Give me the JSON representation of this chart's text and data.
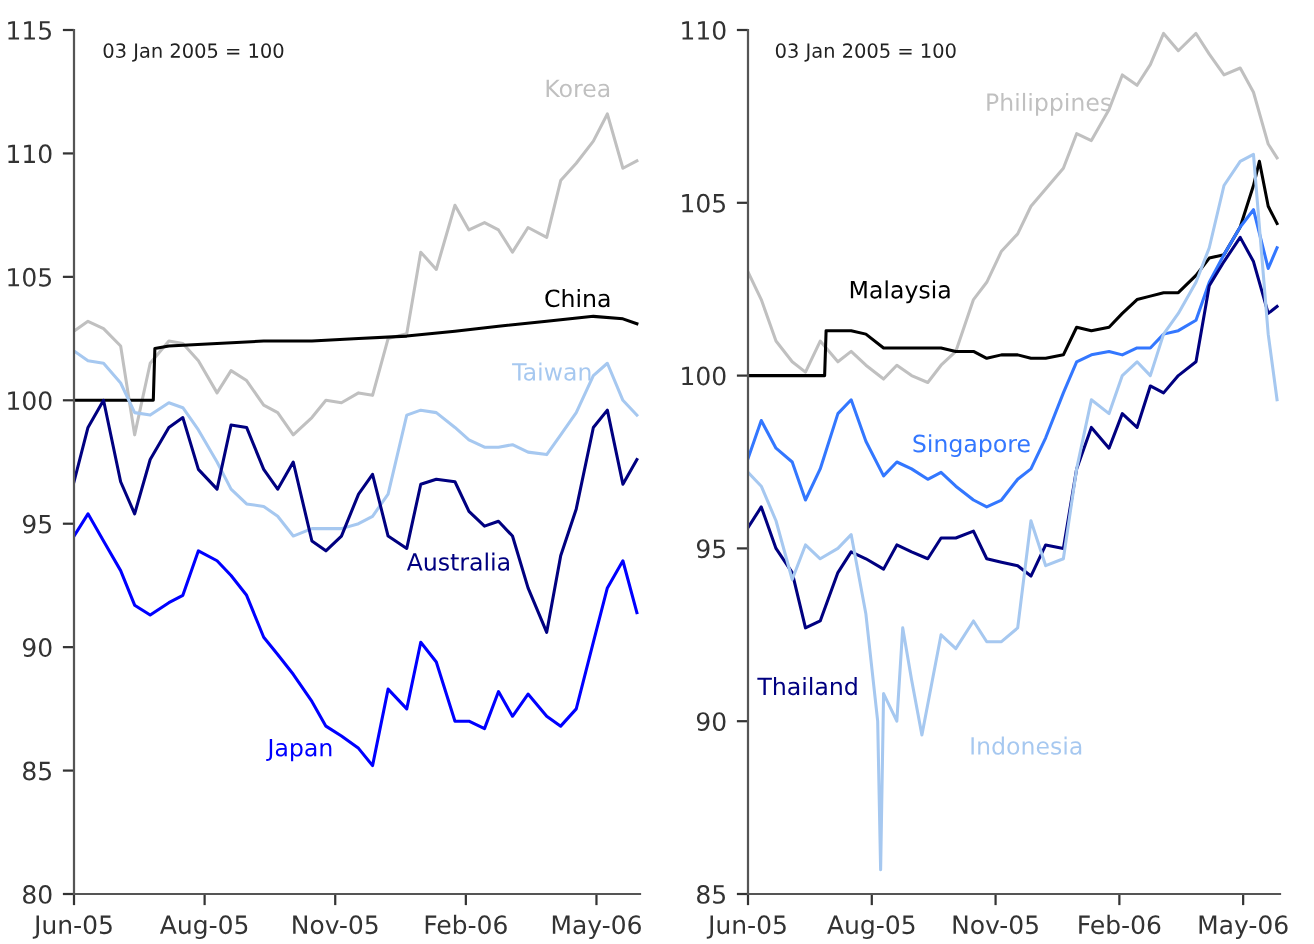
{
  "chart_data": [
    {
      "type": "line",
      "subtitle": "03 Jan 2005 = 100",
      "x": [
        "2005-06-01",
        "2005-06-10",
        "2005-06-20",
        "2005-07-01",
        "2005-07-10",
        "2005-07-20",
        "2005-08-01",
        "2005-08-10",
        "2005-08-20",
        "2005-09-01",
        "2005-09-10",
        "2005-09-20",
        "2005-10-01",
        "2005-10-10",
        "2005-10-20",
        "2005-11-01",
        "2005-11-10",
        "2005-11-20",
        "2005-12-01",
        "2005-12-10",
        "2005-12-20",
        "2006-01-01",
        "2006-01-10",
        "2006-01-20",
        "2006-02-01",
        "2006-02-10",
        "2006-02-20",
        "2006-03-01",
        "2006-03-10",
        "2006-03-20",
        "2006-04-01",
        "2006-04-10",
        "2006-04-20",
        "2006-05-01",
        "2006-05-10",
        "2006-05-20",
        "2006-05-29"
      ],
      "xlim": [
        "2005-06-01",
        "2006-05-31"
      ],
      "xticks": [
        {
          "value": "2005-06-01",
          "label": "Jun-05"
        },
        {
          "value": "2005-08-24",
          "label": "Aug-05"
        },
        {
          "value": "2005-11-16",
          "label": "Nov-05"
        },
        {
          "value": "2006-02-08",
          "label": "Feb-06"
        },
        {
          "value": "2006-05-03",
          "label": "May-06"
        }
      ],
      "ylim": [
        80,
        115
      ],
      "yticks": [
        80,
        85,
        90,
        95,
        100,
        105,
        110,
        115
      ],
      "grid": false,
      "legend": false,
      "line_style": "solid",
      "marker": "none",
      "series": [
        {
          "name": "Korea",
          "color": "#c0c0c0",
          "values": [
            102.8,
            103.2,
            102.9,
            102.2,
            98.6,
            101.5,
            102.4,
            102.3,
            101.6,
            100.3,
            101.2,
            100.8,
            99.8,
            99.5,
            98.6,
            99.3,
            100,
            99.9,
            100.3,
            100.2,
            102.5,
            102.7,
            106,
            105.3,
            107.9,
            106.9,
            107.2,
            106.9,
            106,
            107,
            106.6,
            108.9,
            109.6,
            110.5,
            111.6,
            109.4,
            109.7
          ]
        },
        {
          "name": "China",
          "color": "#000000",
          "x": [
            "2005-06-01",
            "2005-07-22",
            "2005-07-23",
            "2005-08-01",
            "2005-09-01",
            "2005-10-01",
            "2005-11-01",
            "2005-12-01",
            "2006-01-01",
            "2006-02-01",
            "2006-03-01",
            "2006-04-01",
            "2006-05-01",
            "2006-05-20",
            "2006-05-29"
          ],
          "values": [
            100,
            100,
            102.1,
            102.2,
            102.3,
            102.4,
            102.4,
            102.5,
            102.6,
            102.8,
            103,
            103.2,
            103.4,
            103.3,
            103.1
          ]
        },
        {
          "name": "Taiwan",
          "color": "#a6c8f0",
          "values": [
            102,
            101.6,
            101.5,
            100.7,
            99.5,
            99.4,
            99.9,
            99.7,
            98.8,
            97.5,
            96.4,
            95.8,
            95.7,
            95.3,
            94.5,
            94.8,
            94.8,
            94.8,
            95,
            95.3,
            96.2,
            99.4,
            99.6,
            99.5,
            98.9,
            98.4,
            98.1,
            98.1,
            98.2,
            97.9,
            97.8,
            98.6,
            99.5,
            101,
            101.5,
            100,
            99.4
          ]
        },
        {
          "name": "Australia",
          "color": "#000080",
          "values": [
            96.7,
            98.9,
            100,
            96.7,
            95.4,
            97.6,
            98.9,
            99.3,
            97.2,
            96.4,
            99,
            98.9,
            97.2,
            96.4,
            97.5,
            94.3,
            93.9,
            94.5,
            96.2,
            97,
            94.5,
            94,
            96.6,
            96.8,
            96.7,
            95.5,
            94.9,
            95.1,
            94.5,
            92.4,
            90.6,
            93.7,
            95.6,
            98.9,
            99.6,
            96.6,
            97.6
          ]
        },
        {
          "name": "Japan",
          "color": "#0000ff",
          "values": [
            94.5,
            95.4,
            94.3,
            93.1,
            91.7,
            91.3,
            91.8,
            92.1,
            93.9,
            93.5,
            92.9,
            92.1,
            90.4,
            89.7,
            88.9,
            87.8,
            86.8,
            86.4,
            85.9,
            85.2,
            88.3,
            87.5,
            90.2,
            89.4,
            87,
            87,
            86.7,
            88.2,
            87.2,
            88.1,
            87.2,
            86.8,
            87.5,
            90.2,
            92.4,
            93.5,
            91.4
          ]
        }
      ]
    },
    {
      "type": "line",
      "subtitle": "03 Jan 2005 = 100",
      "x": [
        "2005-06-01",
        "2005-06-10",
        "2005-06-20",
        "2005-07-01",
        "2005-07-10",
        "2005-07-20",
        "2005-08-01",
        "2005-08-10",
        "2005-08-20",
        "2005-09-01",
        "2005-09-10",
        "2005-09-20",
        "2005-10-01",
        "2005-10-10",
        "2005-10-20",
        "2005-11-01",
        "2005-11-10",
        "2005-11-20",
        "2005-12-01",
        "2005-12-10",
        "2005-12-20",
        "2006-01-01",
        "2006-01-10",
        "2006-01-20",
        "2006-02-01",
        "2006-02-10",
        "2006-02-20",
        "2006-03-01",
        "2006-03-10",
        "2006-03-20",
        "2006-04-01",
        "2006-04-10",
        "2006-04-20",
        "2006-05-01",
        "2006-05-10",
        "2006-05-20",
        "2006-05-26"
      ],
      "xlim": [
        "2005-06-01",
        "2006-05-28"
      ],
      "xticks": [
        {
          "value": "2005-06-01",
          "label": "Jun-05"
        },
        {
          "value": "2005-08-24",
          "label": "Aug-05"
        },
        {
          "value": "2005-11-16",
          "label": "Nov-05"
        },
        {
          "value": "2006-02-08",
          "label": "Feb-06"
        },
        {
          "value": "2006-05-03",
          "label": "May-06"
        }
      ],
      "ylim": [
        85,
        110
      ],
      "yticks": [
        85,
        90,
        95,
        100,
        105,
        110
      ],
      "grid": false,
      "legend": false,
      "line_style": "solid",
      "marker": "none",
      "series": [
        {
          "name": "Philippines",
          "color": "#c0c0c0",
          "values": [
            103,
            102.2,
            101,
            100.4,
            100.1,
            101,
            100.4,
            100.7,
            100.3,
            99.9,
            100.3,
            100,
            99.8,
            100.3,
            100.7,
            102.2,
            102.7,
            103.6,
            104.1,
            104.9,
            105.4,
            106,
            107,
            106.8,
            107.7,
            108.7,
            108.4,
            109,
            109.9,
            109.4,
            109.9,
            109.3,
            108.7,
            108.9,
            108.2,
            106.7,
            106.3
          ]
        },
        {
          "name": "Malaysia",
          "color": "#000000",
          "x": [
            "2005-06-01",
            "2005-07-23",
            "2005-07-24",
            "2005-08-01",
            "2005-08-10",
            "2005-08-20",
            "2005-09-01",
            "2005-09-10",
            "2005-09-20",
            "2005-10-01",
            "2005-10-10",
            "2005-10-20",
            "2005-11-01",
            "2005-11-10",
            "2005-11-20",
            "2005-12-01",
            "2005-12-10",
            "2005-12-20",
            "2006-01-01",
            "2006-01-10",
            "2006-01-20",
            "2006-02-01",
            "2006-02-10",
            "2006-02-20",
            "2006-03-01",
            "2006-03-10",
            "2006-03-20",
            "2006-04-01",
            "2006-04-10",
            "2006-04-20",
            "2006-05-01",
            "2006-05-10",
            "2006-05-14",
            "2006-05-20",
            "2006-05-26"
          ],
          "values": [
            100,
            100,
            101.3,
            101.3,
            101.3,
            101.2,
            100.8,
            100.8,
            100.8,
            100.8,
            100.8,
            100.7,
            100.7,
            100.5,
            100.6,
            100.6,
            100.5,
            100.5,
            100.6,
            101.4,
            101.3,
            101.4,
            101.8,
            102.2,
            102.3,
            102.4,
            102.4,
            102.9,
            103.4,
            103.5,
            104.3,
            105.5,
            106.2,
            104.9,
            104.4
          ]
        },
        {
          "name": "Singapore",
          "color": "#3377ff",
          "values": [
            97.6,
            98.7,
            97.9,
            97.5,
            96.4,
            97.3,
            98.9,
            99.3,
            98.1,
            97.1,
            97.5,
            97.3,
            97,
            97.2,
            96.8,
            96.4,
            96.2,
            96.4,
            97,
            97.3,
            98.2,
            99.5,
            100.4,
            100.6,
            100.7,
            100.6,
            100.8,
            100.8,
            101.2,
            101.3,
            101.6,
            102.7,
            103.5,
            104.3,
            104.8,
            103.1,
            103.7
          ]
        },
        {
          "name": "Thailand",
          "color": "#000080",
          "values": [
            95.6,
            96.2,
            95,
            94.3,
            92.7,
            92.9,
            94.3,
            94.9,
            94.7,
            94.4,
            95.1,
            94.9,
            94.7,
            95.3,
            95.3,
            95.5,
            94.7,
            94.6,
            94.5,
            94.2,
            95.1,
            95,
            97.3,
            98.5,
            97.9,
            98.9,
            98.5,
            99.7,
            99.5,
            100,
            100.4,
            102.6,
            103.3,
            104,
            103.3,
            101.8,
            102
          ]
        },
        {
          "name": "Indonesia",
          "color": "#a6c8f0",
          "x": [
            "2005-06-01",
            "2005-06-10",
            "2005-06-20",
            "2005-07-01",
            "2005-07-10",
            "2005-07-20",
            "2005-08-01",
            "2005-08-10",
            "2005-08-20",
            "2005-08-28",
            "2005-08-30",
            "2005-09-01",
            "2005-09-10",
            "2005-09-14",
            "2005-09-20",
            "2005-09-27",
            "2005-10-10",
            "2005-10-20",
            "2005-11-01",
            "2005-11-10",
            "2005-11-20",
            "2005-12-01",
            "2005-12-10",
            "2005-12-20",
            "2006-01-01",
            "2006-01-10",
            "2006-01-20",
            "2006-02-01",
            "2006-02-10",
            "2006-02-20",
            "2006-03-01",
            "2006-03-10",
            "2006-03-20",
            "2006-04-01",
            "2006-04-10",
            "2006-04-20",
            "2006-05-01",
            "2006-05-10",
            "2006-05-20",
            "2006-05-26"
          ],
          "values": [
            97.2,
            96.8,
            95.8,
            94.1,
            95.1,
            94.7,
            95,
            95.4,
            93.1,
            90,
            85.7,
            90.8,
            90,
            92.7,
            91.2,
            89.6,
            92.5,
            92.1,
            92.9,
            92.3,
            92.3,
            92.7,
            95.8,
            94.5,
            94.7,
            97.3,
            99.3,
            98.9,
            100,
            100.4,
            100,
            101.2,
            101.8,
            102.7,
            103.7,
            105.5,
            106.2,
            106.4,
            101.2,
            99.3
          ]
        }
      ]
    }
  ]
}
